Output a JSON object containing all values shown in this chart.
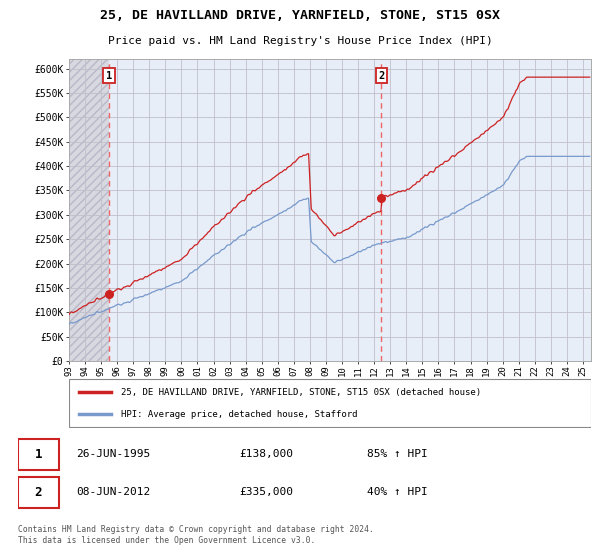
{
  "title1": "25, DE HAVILLAND DRIVE, YARNFIELD, STONE, ST15 0SX",
  "title2": "Price paid vs. HM Land Registry's House Price Index (HPI)",
  "ylabel_ticks": [
    "£0",
    "£50K",
    "£100K",
    "£150K",
    "£200K",
    "£250K",
    "£300K",
    "£350K",
    "£400K",
    "£450K",
    "£500K",
    "£550K",
    "£600K"
  ],
  "ytick_values": [
    0,
    50000,
    100000,
    150000,
    200000,
    250000,
    300000,
    350000,
    400000,
    450000,
    500000,
    550000,
    600000
  ],
  "xtick_years": [
    1993,
    1994,
    1995,
    1996,
    1997,
    1998,
    1999,
    2000,
    2001,
    2002,
    2003,
    2004,
    2005,
    2006,
    2007,
    2008,
    2009,
    2010,
    2011,
    2012,
    2013,
    2014,
    2015,
    2016,
    2017,
    2018,
    2019,
    2020,
    2021,
    2022,
    2023,
    2024,
    2025
  ],
  "sale1_date": 1995.48,
  "sale1_price": 138000,
  "sale1_label": "1",
  "sale2_date": 2012.44,
  "sale2_price": 335000,
  "sale2_label": "2",
  "legend_line1": "25, DE HAVILLAND DRIVE, YARNFIELD, STONE, ST15 0SX (detached house)",
  "legend_line2": "HPI: Average price, detached house, Stafford",
  "note1_label": "1",
  "note1_date": "26-JUN-1995",
  "note1_price": "£138,000",
  "note1_hpi": "85% ↑ HPI",
  "note2_label": "2",
  "note2_date": "08-JUN-2012",
  "note2_price": "£335,000",
  "note2_hpi": "40% ↑ HPI",
  "footer": "Contains HM Land Registry data © Crown copyright and database right 2024.\nThis data is licensed under the Open Government Licence v3.0.",
  "line_color_red": "#cc2222",
  "line_color_blue": "#7799cc",
  "bg_color_hatch": "#e0e0e8",
  "bg_color_main": "#e8eef8",
  "grid_color": "#c0c0cc",
  "dashed_line_color": "#ee6666",
  "hatch_pattern": "////",
  "xlim_left": 1993.0,
  "xlim_right": 2025.5,
  "ylim_bottom": 0,
  "ylim_top": 620000
}
